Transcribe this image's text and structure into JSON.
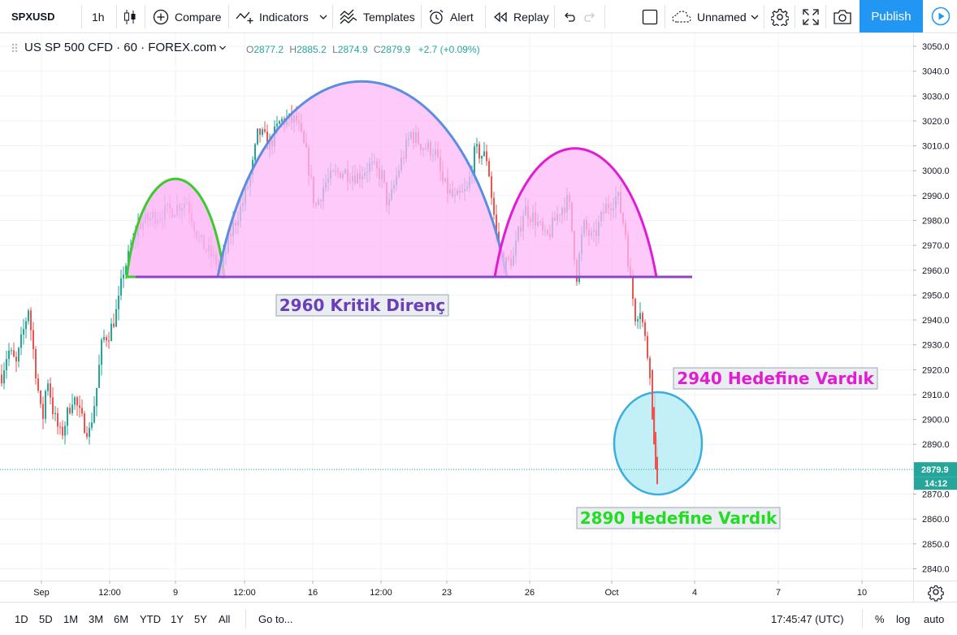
{
  "toolbar": {
    "symbol": "SPXUSD",
    "interval": "1h",
    "compare": "Compare",
    "indicators": "Indicators",
    "templates": "Templates",
    "alert": "Alert",
    "replay": "Replay",
    "layout_name": "Unnamed",
    "publish": "Publish"
  },
  "legend": {
    "title": "US SP 500 CFD · 60 · FOREX.com",
    "open": "2877.2",
    "high": "2885.2",
    "low": "2874.9",
    "close": "2879.9",
    "change": "+2.7 (+0.09%)"
  },
  "price_axis": {
    "ticks": [
      "3050.0",
      "3040.0",
      "3030.0",
      "3020.0",
      "3010.0",
      "3000.0",
      "2990.0",
      "2980.0",
      "2970.0",
      "2960.0",
      "2950.0",
      "2940.0",
      "2930.0",
      "2920.0",
      "2910.0",
      "2900.0",
      "2890.0",
      "2880.0",
      "2870.0",
      "2860.0",
      "2850.0",
      "2840.0"
    ],
    "last_price": "2879.9",
    "countdown": "14:12"
  },
  "time_axis": {
    "ticks": [
      "Sep",
      "12:00",
      "9",
      "12:00",
      "16",
      "12:00",
      "23",
      "26",
      "Oct",
      "4",
      "7",
      "10"
    ]
  },
  "annotations": {
    "resistance": "2960 Kritik Direnç",
    "target_2940": "2940 Hedefine Vardık",
    "target_2890": "2890 Hedefine Vardık"
  },
  "colors": {
    "up": "#26a69a",
    "down": "#ef5350",
    "accent": "#2196f3",
    "arc_fill": "#fdb8f8",
    "arc_green": "#3ccb2c",
    "arc_blue": "#5b8de0",
    "arc_magenta": "#e21cd2",
    "resistance_line": "#8e44c4",
    "circle_fill": "#b8ecf6",
    "circle_stroke": "#3aaee0"
  },
  "bottombar": {
    "ranges": [
      "1D",
      "5D",
      "1M",
      "3M",
      "6M",
      "YTD",
      "1Y",
      "5Y",
      "All"
    ],
    "goto": "Go to...",
    "time": "17:45:47 (UTC)",
    "percent": "%",
    "log": "log",
    "auto": "auto"
  }
}
